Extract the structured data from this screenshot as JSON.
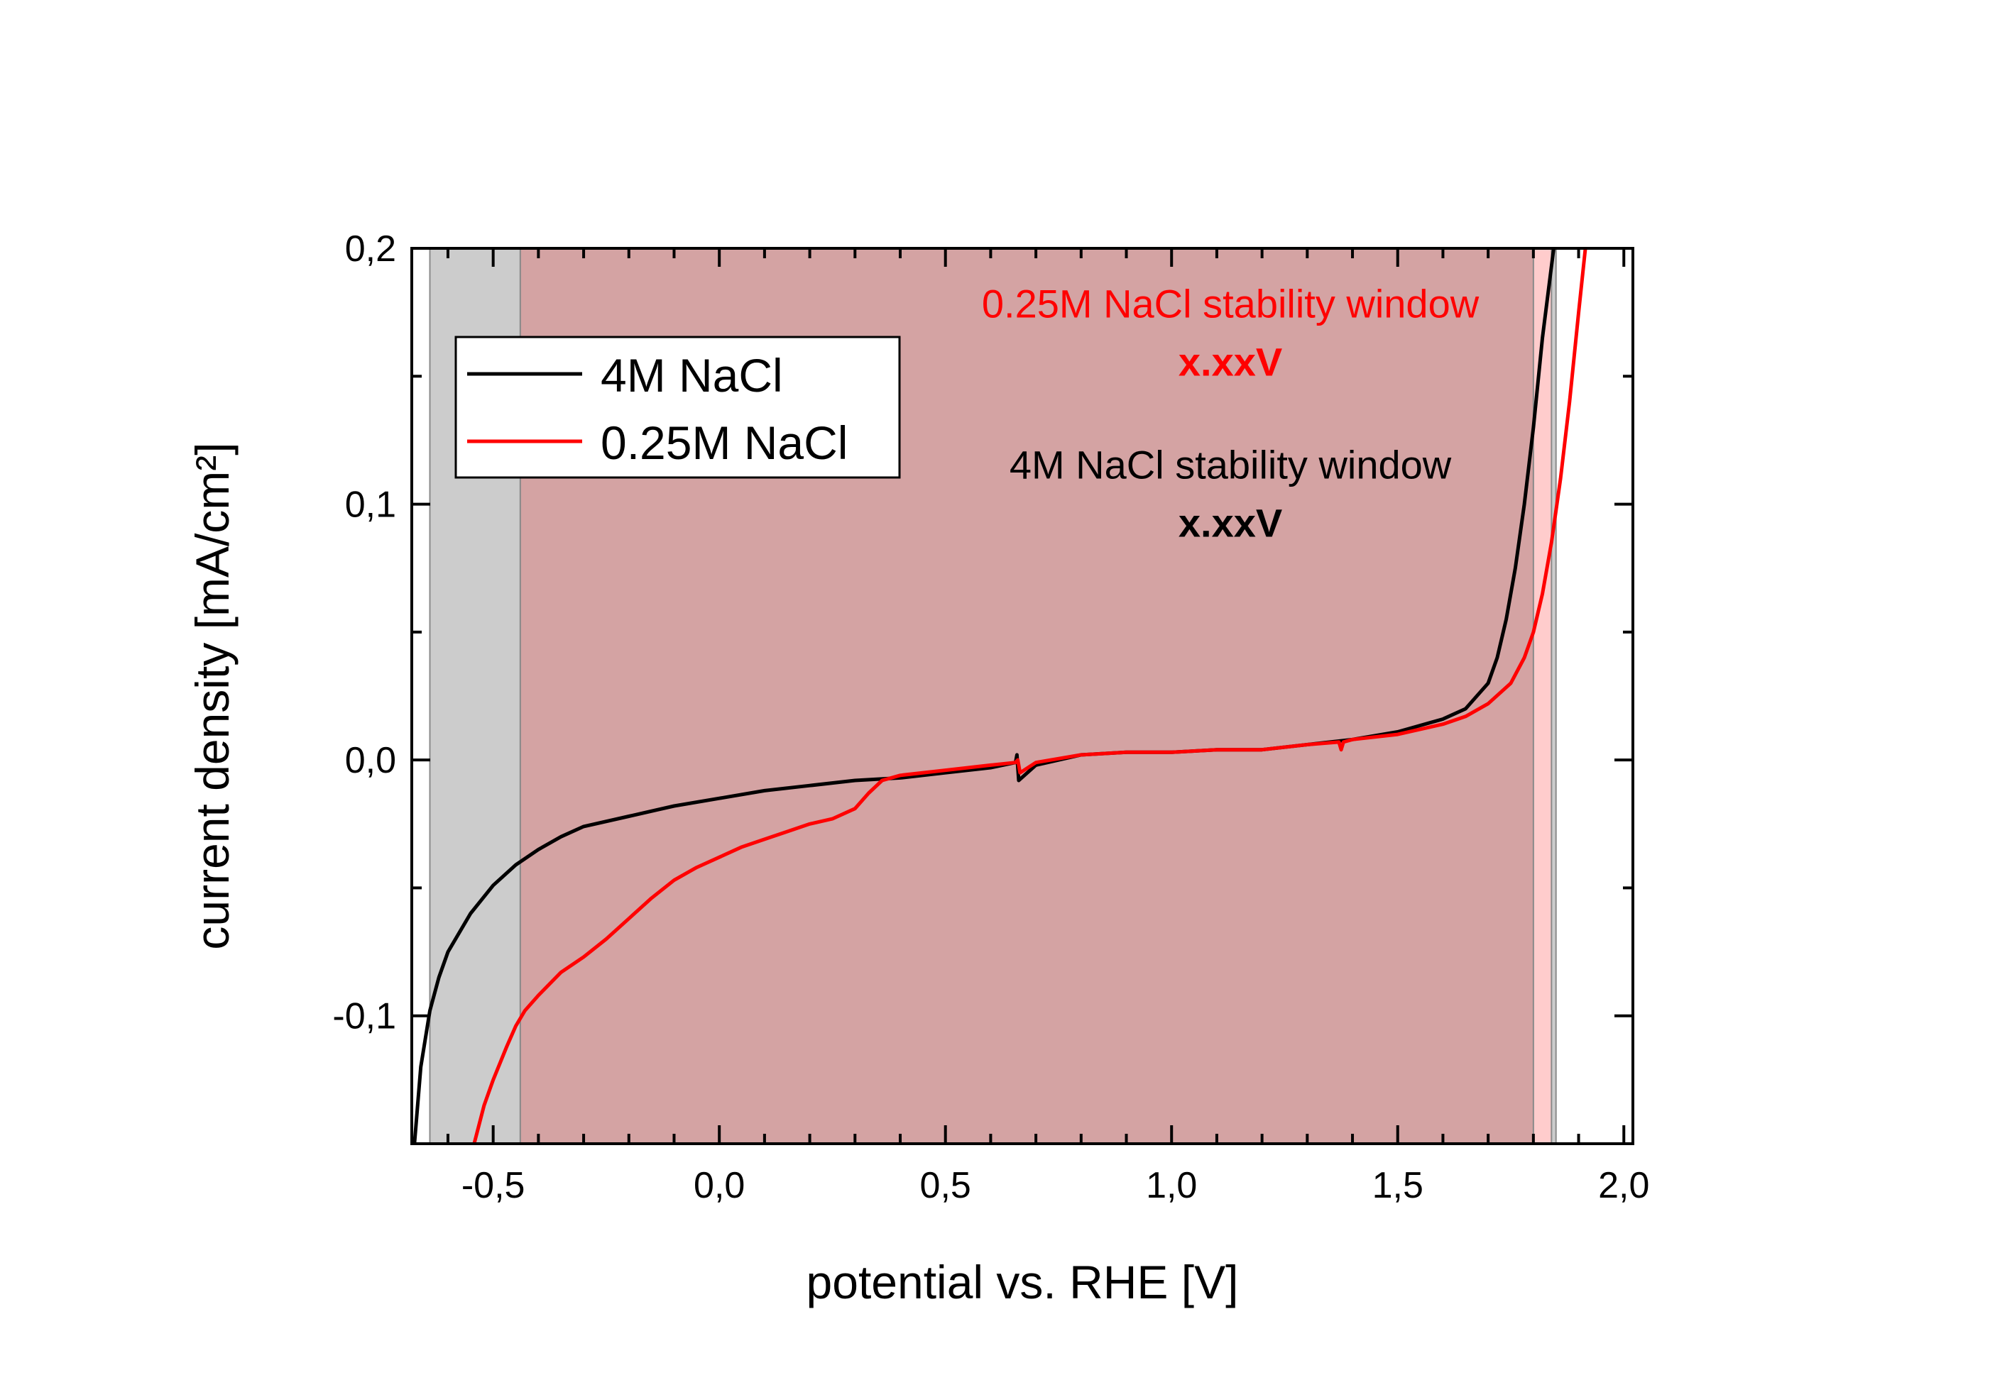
{
  "chart_data": {
    "type": "line",
    "xlabel": "potential vs. RHE [V]",
    "ylabel": "current density [mA/cm²]",
    "xlim": [
      -0.68,
      2.02
    ],
    "ylim": [
      -0.15,
      0.2
    ],
    "x_ticks": [
      {
        "value": -0.5,
        "label": "-0,5"
      },
      {
        "value": 0.0,
        "label": "0,0"
      },
      {
        "value": 0.5,
        "label": "0,5"
      },
      {
        "value": 1.0,
        "label": "1,0"
      },
      {
        "value": 1.5,
        "label": "1,5"
      },
      {
        "value": 2.0,
        "label": "2,0"
      }
    ],
    "y_ticks": [
      {
        "value": -0.1,
        "label": "-0,1"
      },
      {
        "value": 0.0,
        "label": "0,0"
      },
      {
        "value": 0.1,
        "label": "0,1"
      },
      {
        "value": 0.2,
        "label": "0,2"
      }
    ],
    "x_minor_step": 0.1,
    "y_minor_step": 0.05,
    "grid": false,
    "legend_position": "top-left",
    "regions": [
      {
        "name": "4M NaCl window",
        "x_from": -0.64,
        "x_to": 1.85,
        "color": "#cccccc"
      },
      {
        "name": "0.25M NaCl window",
        "x_from": -0.44,
        "x_to": 1.84,
        "color": "#ffcccc"
      },
      {
        "name": "overlap",
        "x_from": -0.44,
        "x_to": 1.8,
        "color": "#d4a3a3"
      }
    ],
    "annotations": [
      {
        "title": "0.25M NaCl stability window",
        "value": "x.xxV",
        "color": "#ff0000",
        "x": 1.13,
        "y": 0.173
      },
      {
        "title": "4M NaCl stability window",
        "value": "x.xxV",
        "color": "#000000",
        "x": 1.13,
        "y": 0.11
      }
    ],
    "series": [
      {
        "name": "4M NaCl",
        "color": "#000000",
        "points": [
          [
            -0.675,
            -0.152
          ],
          [
            -0.66,
            -0.12
          ],
          [
            -0.64,
            -0.098
          ],
          [
            -0.62,
            -0.085
          ],
          [
            -0.6,
            -0.075
          ],
          [
            -0.55,
            -0.06
          ],
          [
            -0.5,
            -0.049
          ],
          [
            -0.45,
            -0.041
          ],
          [
            -0.4,
            -0.035
          ],
          [
            -0.35,
            -0.03
          ],
          [
            -0.3,
            -0.026
          ],
          [
            -0.2,
            -0.022
          ],
          [
            -0.1,
            -0.018
          ],
          [
            0.0,
            -0.015
          ],
          [
            0.1,
            -0.012
          ],
          [
            0.2,
            -0.01
          ],
          [
            0.3,
            -0.008
          ],
          [
            0.4,
            -0.007
          ],
          [
            0.5,
            -0.005
          ],
          [
            0.6,
            -0.003
          ],
          [
            0.655,
            -0.001
          ],
          [
            0.658,
            0.002
          ],
          [
            0.662,
            -0.008
          ],
          [
            0.7,
            -0.002
          ],
          [
            0.8,
            0.002
          ],
          [
            0.9,
            0.003
          ],
          [
            1.0,
            0.003
          ],
          [
            1.1,
            0.004
          ],
          [
            1.2,
            0.004
          ],
          [
            1.3,
            0.006
          ],
          [
            1.4,
            0.008
          ],
          [
            1.5,
            0.011
          ],
          [
            1.6,
            0.016
          ],
          [
            1.65,
            0.02
          ],
          [
            1.7,
            0.03
          ],
          [
            1.72,
            0.04
          ],
          [
            1.74,
            0.055
          ],
          [
            1.76,
            0.075
          ],
          [
            1.78,
            0.1
          ],
          [
            1.8,
            0.13
          ],
          [
            1.82,
            0.165
          ],
          [
            1.845,
            0.2
          ]
        ]
      },
      {
        "name": "0.25M NaCl",
        "color": "#ff0000",
        "points": [
          [
            -0.545,
            -0.152
          ],
          [
            -0.52,
            -0.135
          ],
          [
            -0.5,
            -0.125
          ],
          [
            -0.47,
            -0.112
          ],
          [
            -0.45,
            -0.104
          ],
          [
            -0.43,
            -0.098
          ],
          [
            -0.4,
            -0.092
          ],
          [
            -0.35,
            -0.083
          ],
          [
            -0.3,
            -0.077
          ],
          [
            -0.25,
            -0.07
          ],
          [
            -0.2,
            -0.062
          ],
          [
            -0.15,
            -0.054
          ],
          [
            -0.1,
            -0.047
          ],
          [
            -0.05,
            -0.042
          ],
          [
            0.0,
            -0.038
          ],
          [
            0.05,
            -0.034
          ],
          [
            0.1,
            -0.031
          ],
          [
            0.15,
            -0.028
          ],
          [
            0.2,
            -0.025
          ],
          [
            0.25,
            -0.023
          ],
          [
            0.3,
            -0.019
          ],
          [
            0.33,
            -0.013
          ],
          [
            0.36,
            -0.008
          ],
          [
            0.4,
            -0.006
          ],
          [
            0.5,
            -0.004
          ],
          [
            0.6,
            -0.002
          ],
          [
            0.655,
            -0.001
          ],
          [
            0.66,
            0.0
          ],
          [
            0.665,
            -0.005
          ],
          [
            0.7,
            -0.001
          ],
          [
            0.8,
            0.002
          ],
          [
            0.9,
            0.003
          ],
          [
            1.0,
            0.003
          ],
          [
            1.1,
            0.004
          ],
          [
            1.2,
            0.004
          ],
          [
            1.3,
            0.006
          ],
          [
            1.37,
            0.007
          ],
          [
            1.375,
            0.004
          ],
          [
            1.38,
            0.007
          ],
          [
            1.4,
            0.008
          ],
          [
            1.5,
            0.01
          ],
          [
            1.6,
            0.014
          ],
          [
            1.65,
            0.017
          ],
          [
            1.7,
            0.022
          ],
          [
            1.75,
            0.03
          ],
          [
            1.78,
            0.04
          ],
          [
            1.8,
            0.05
          ],
          [
            1.82,
            0.065
          ],
          [
            1.84,
            0.085
          ],
          [
            1.86,
            0.11
          ],
          [
            1.88,
            0.14
          ],
          [
            1.9,
            0.175
          ],
          [
            1.915,
            0.2
          ]
        ]
      }
    ]
  }
}
